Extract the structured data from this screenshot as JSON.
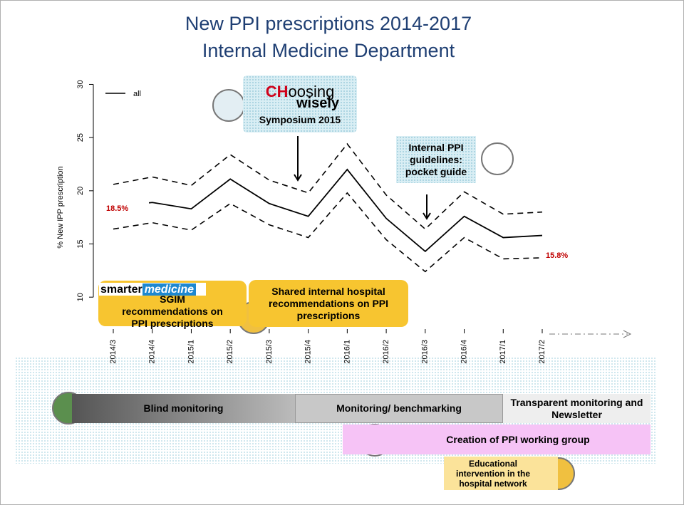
{
  "chart_data": {
    "type": "line",
    "title": "New PPI prescriptions 2014-2017",
    "subtitle": "Internal Medicine Department",
    "y_label": "% New IPP prescription",
    "categories": [
      "2014/3",
      "2014/4",
      "2015/1",
      "2015/2",
      "2015/3",
      "2015/4",
      "2016/1",
      "2016/2",
      "2016/3",
      "2016/4",
      "2017/1",
      "2017/2"
    ],
    "series": [
      {
        "name": "all",
        "color": "#000000",
        "dash": false,
        "values": [
          18.5,
          18.9,
          18.3,
          21.1,
          18.8,
          17.6,
          22.0,
          17.4,
          14.3,
          17.6,
          15.6,
          15.8
        ],
        "value_labels": [
          "18.5%",
          null,
          null,
          null,
          null,
          null,
          null,
          null,
          null,
          null,
          null,
          "15.8%"
        ]
      },
      {
        "color": "#000000",
        "dash": true,
        "values": [
          20.6,
          21.3,
          20.5,
          23.4,
          21.0,
          19.8,
          24.4,
          19.6,
          16.4,
          19.9,
          17.8,
          18.0
        ]
      },
      {
        "color": "#000000",
        "dash": true,
        "values": [
          16.4,
          17.0,
          16.3,
          18.8,
          16.8,
          15.6,
          19.8,
          15.4,
          12.4,
          15.6,
          13.6,
          13.7
        ]
      }
    ],
    "ylim": [
      7,
      30.5
    ],
    "yticks": [
      10,
      15,
      20,
      25,
      30
    ],
    "grid": false,
    "legend": "top-left",
    "value_label_color": "#c00000",
    "annotations": {
      "choosing_ch": "CH",
      "choosing_rest": "oosing",
      "wisely": "wisely",
      "symposium": "Symposium 2015",
      "pocket_guide": "Internal PPI guidelines: pocket guide",
      "smarter": "smarter",
      "medicine": "medicine",
      "sgim": "SGIM recommendations on PPI prescriptions",
      "shared": "Shared internal hospital recommendations on PPI prescriptions",
      "blind": "Blind monitoring",
      "benchmarking": "Monitoring/ benchmarking",
      "transparent": "Transparent monitoring and Newsletter",
      "working_group": "Creation of PPI working group",
      "educational": "Educational intervention in the hospital network"
    }
  }
}
